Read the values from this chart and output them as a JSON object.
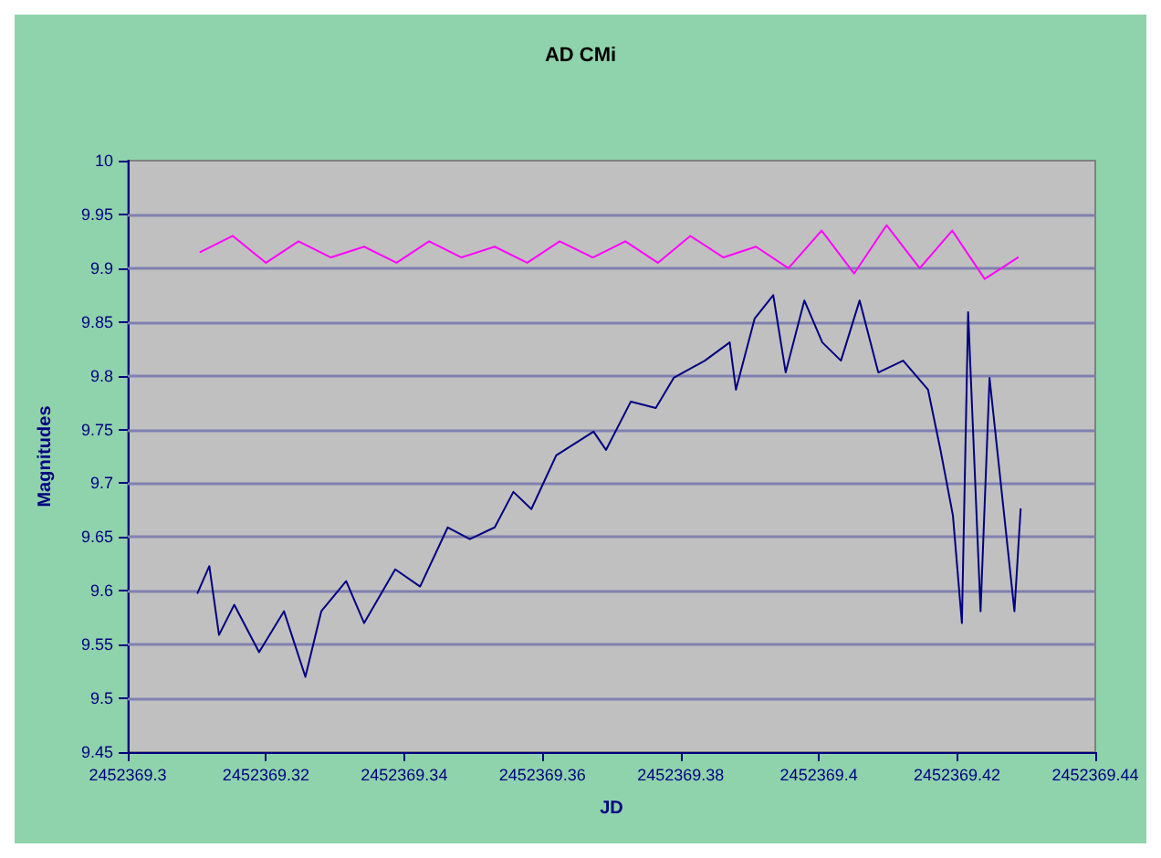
{
  "chart_data": {
    "type": "line",
    "title": "AD CMi",
    "xlabel": "JD",
    "ylabel": "Magnitudes",
    "xlim": [
      2452369.3,
      2452369.44
    ],
    "xticks": [
      2452369.3,
      2452369.32,
      2452369.34,
      2452369.36,
      2452369.38,
      2452369.4,
      2452369.42,
      2452369.44
    ],
    "ylim": [
      9.45,
      10
    ],
    "yticks": [
      9.45,
      9.5,
      9.55,
      9.6,
      9.65,
      9.7,
      9.75,
      9.8,
      9.85,
      9.9,
      9.95,
      10
    ],
    "grid": "y",
    "marker": "none",
    "line_style": "solid",
    "series": [
      {
        "color": "#ff00ff",
        "x": [
          2452369.3105,
          2452369.3152,
          2452369.32,
          2452369.3247,
          2452369.3294,
          2452369.3342,
          2452369.3389,
          2452369.3436,
          2452369.3483,
          2452369.3531,
          2452369.3578,
          2452369.3625,
          2452369.3673,
          2452369.372,
          2452369.3767,
          2452369.3814,
          2452369.3862,
          2452369.3909,
          2452369.3956,
          2452369.4004,
          2452369.4051,
          2452369.4098,
          2452369.4146,
          2452369.4193,
          2452369.424,
          2452369.4288
        ],
        "values": [
          9.915,
          9.93,
          9.905,
          9.925,
          9.91,
          9.92,
          9.905,
          9.925,
          9.91,
          9.92,
          9.905,
          9.925,
          9.91,
          9.925,
          9.905,
          9.93,
          9.91,
          9.92,
          9.9,
          9.935,
          9.895,
          9.94,
          9.9,
          9.935,
          9.89,
          9.91
        ]
      },
      {
        "color": "#000080",
        "x": [
          2452369.3101,
          2452369.3118,
          2452369.3132,
          2452369.3154,
          2452369.319,
          2452369.3226,
          2452369.3257,
          2452369.328,
          2452369.3316,
          2452369.3342,
          2452369.3387,
          2452369.3423,
          2452369.3463,
          2452369.3495,
          2452369.3531,
          2452369.3558,
          2452369.3584,
          2452369.362,
          2452369.3674,
          2452369.3692,
          2452369.3728,
          2452369.3764,
          2452369.379,
          2452369.3835,
          2452369.3871,
          2452369.388,
          2452369.3907,
          2452369.3934,
          2452369.3952,
          2452369.3979,
          2452369.4005,
          2452369.4032,
          2452369.4059,
          2452369.4086,
          2452369.4122,
          2452369.4158,
          2452369.4176,
          2452369.4194,
          2452369.4207,
          2452369.4216,
          2452369.4234,
          2452369.4247,
          2452369.4283,
          2452369.4292
        ],
        "values": [
          9.598,
          9.623,
          9.559,
          9.587,
          9.543,
          9.581,
          9.52,
          9.581,
          9.609,
          9.57,
          9.62,
          9.604,
          9.659,
          9.648,
          9.659,
          9.692,
          9.676,
          9.726,
          9.748,
          9.731,
          9.776,
          9.77,
          9.798,
          9.814,
          9.831,
          9.787,
          9.853,
          9.875,
          9.803,
          9.87,
          9.831,
          9.814,
          9.87,
          9.803,
          9.814,
          9.787,
          9.731,
          9.67,
          9.57,
          9.859,
          9.581,
          9.798,
          9.581,
          9.676
        ]
      }
    ]
  }
}
